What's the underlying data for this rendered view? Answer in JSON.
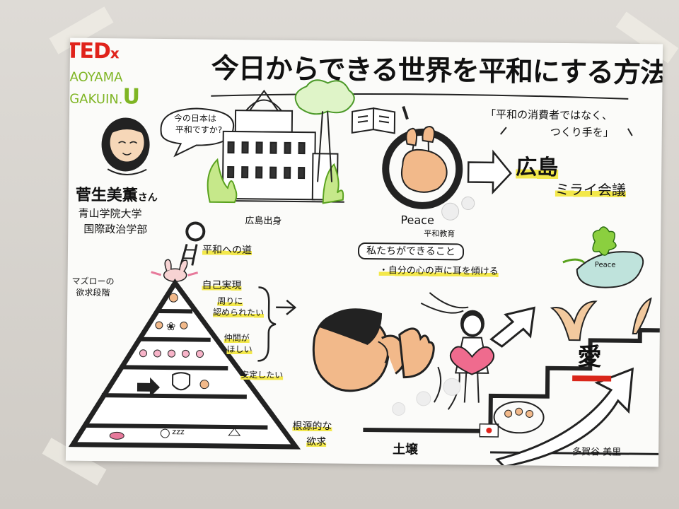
{
  "logo": {
    "brand": "TED",
    "mark": "x",
    "line1": "AOYAMA",
    "line2": "GAKUIN.",
    "line2_u": "U"
  },
  "title": "今日からできる世界を平和にする方法",
  "speaker": {
    "bubble_l1": "今の日本は",
    "bubble_l2": "平和ですか?",
    "name": "菅生美薫",
    "suffix": "さん",
    "affil1": "青山学院大学",
    "affil2": "国際政治学部"
  },
  "origin": "広島出身",
  "quote_l1": "「平和の消費者ではなく、",
  "quote_l2": "つくり手を」",
  "hiroshima": "広島",
  "mirai": "ミライ会議",
  "peace_word": "Peace",
  "peace_edu": "平和教育",
  "path_to_peace": "平和への道",
  "what_we_can": "私たちができること",
  "listen": "・自分の心の声に耳を傾ける",
  "maslow_l1": "マズローの",
  "maslow_l2": "欲求段階",
  "needs": {
    "self": "自己実現",
    "recog_l1": "周りに",
    "recog_l2": "認められたい",
    "belong_l1": "仲間が",
    "belong_l2": "ほしい",
    "safety": "安定したい",
    "basic_l1": "根源的な",
    "basic_l2": "欲求"
  },
  "pyramid_zzz": "zzz",
  "soil": "土壌",
  "love": "愛",
  "dove": "Peace",
  "artist": "多賀谷 美里",
  "colors": {
    "ted_red": "#e0231b",
    "aoyama_green": "#7fb524",
    "highlight": "#f3e84b",
    "heart": "#ef6b8e",
    "skin": "#f2b98a",
    "leaf": "#8bcf3f"
  }
}
